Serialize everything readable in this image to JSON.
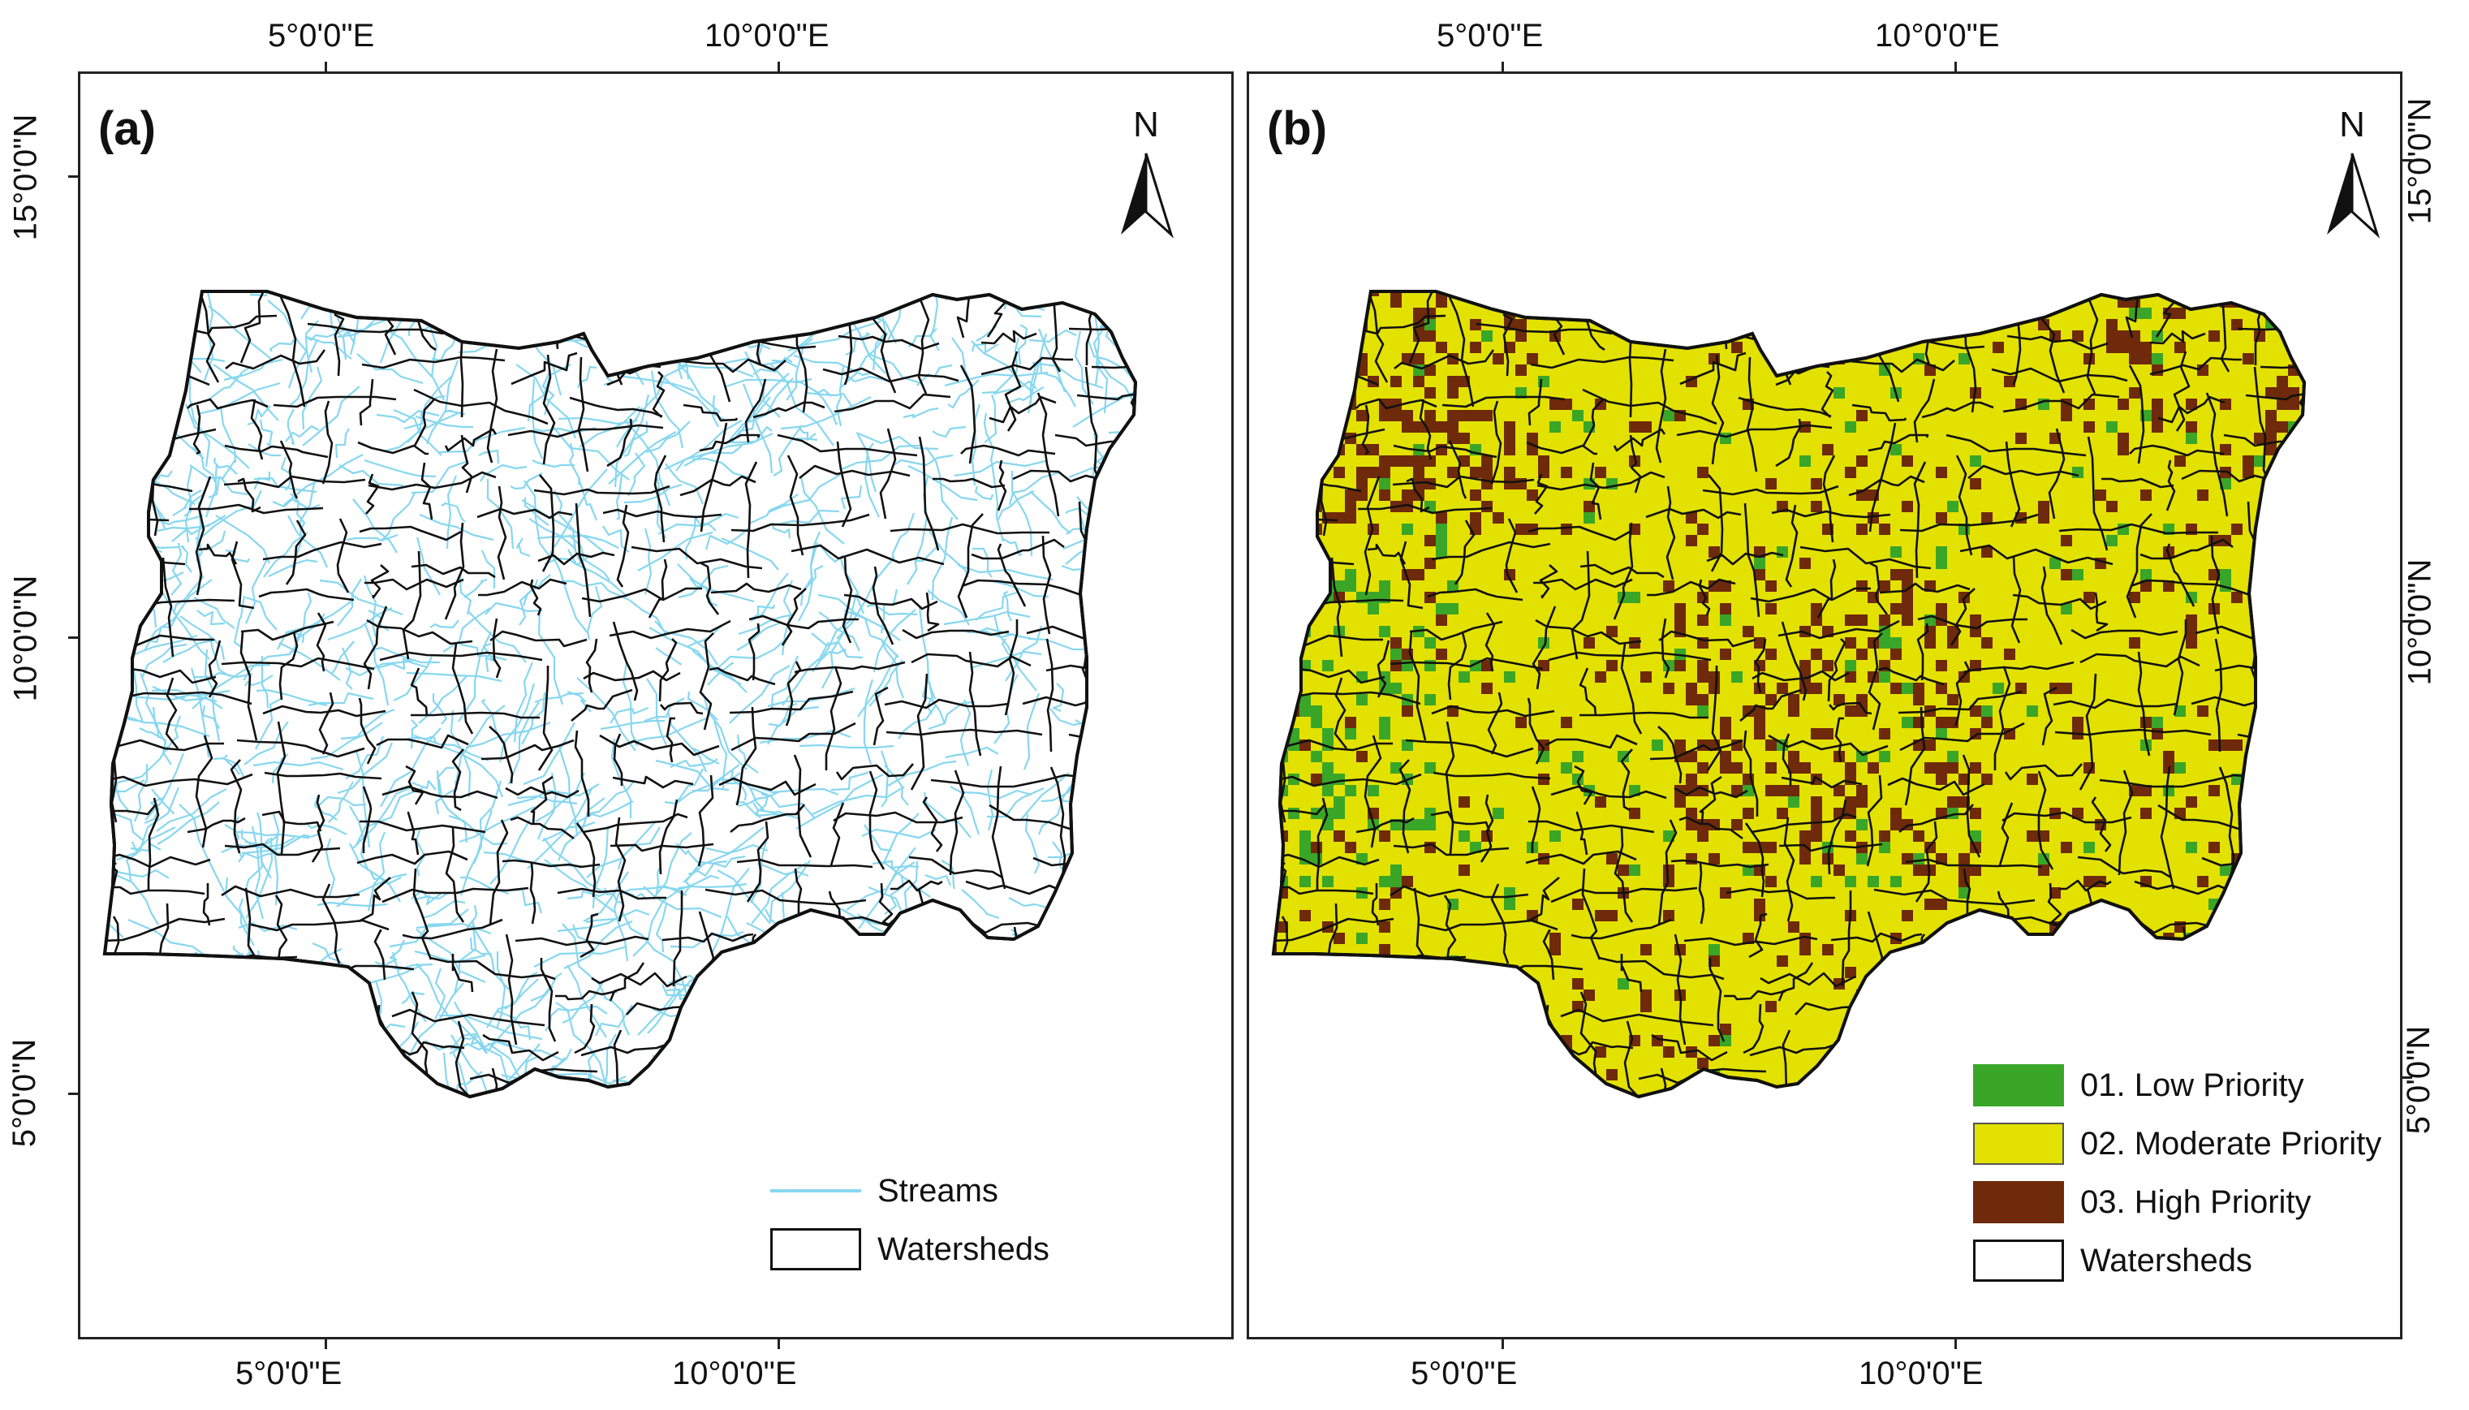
{
  "panels": {
    "a": {
      "label": "(a)"
    },
    "b": {
      "label": "(b)"
    }
  },
  "axes": {
    "lon_ticks": [
      "5°0'0\"E",
      "10°0'0\"E"
    ],
    "lat_ticks": [
      "15°0'0\"N",
      "10°0'0\"N",
      "5°0'0\"N"
    ]
  },
  "north_arrow": {
    "letter": "N",
    "icon": "north-arrow-icon"
  },
  "legend_a": {
    "streams": "Streams",
    "watersheds": "Watersheds"
  },
  "legend_b": {
    "low": "01. Low Priority",
    "moderate": "02. Moderate Priority",
    "high": "03. High Priority",
    "watersheds": "Watersheds"
  },
  "colors": {
    "streams": "#87d7ef",
    "low": "#3aa628",
    "moderate": "#e3e100",
    "high": "#6e2a0a",
    "boundary": "#111111"
  }
}
